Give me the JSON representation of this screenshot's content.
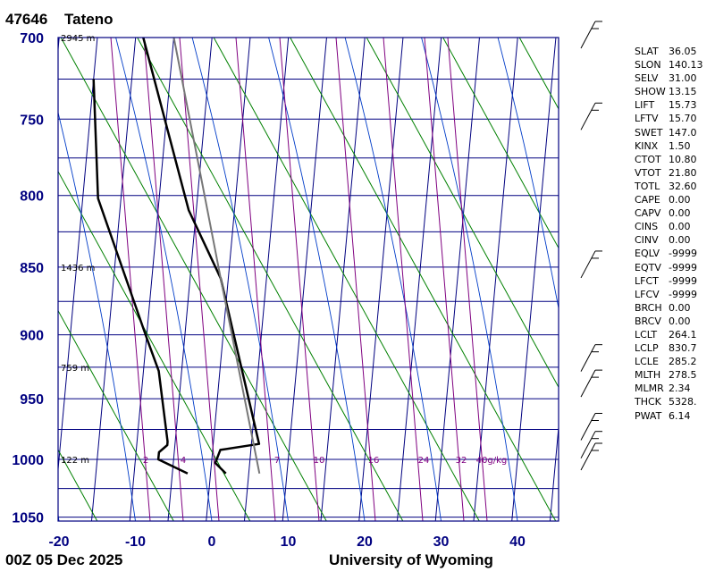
{
  "header": {
    "station_id": "47646",
    "station_name": "Tateno"
  },
  "footer": {
    "datetime": "00Z 05 Dec 2025",
    "source": "University of Wyoming"
  },
  "chart_data": {
    "type": "line",
    "title": "",
    "xlabel": "",
    "ylabel": "",
    "y_scale": "log",
    "x_ticks": [
      -20,
      -10,
      0,
      10,
      20,
      30,
      40
    ],
    "y_ticks": [
      700,
      750,
      800,
      850,
      900,
      950,
      1000,
      1050
    ],
    "xlim": [
      -20,
      45
    ],
    "ylim": [
      1050,
      700
    ],
    "height_labels": [
      {
        "p": 700,
        "label": "2945 m"
      },
      {
        "p": 850,
        "label": "1436 m"
      },
      {
        "p": 925,
        "label": "759 m"
      },
      {
        "p": 1000,
        "label": "122 m"
      }
    ],
    "mixing_ratio_labels": [
      "2",
      "4",
      "7",
      "10",
      "16",
      "24",
      "32",
      "40g/kg"
    ],
    "series": [
      {
        "role": "temperature",
        "color": "#000000",
        "points": [
          [
            2,
            1012
          ],
          [
            0.5,
            1003
          ],
          [
            1,
            992
          ],
          [
            6,
            987
          ],
          [
            -1,
            858
          ],
          [
            -6,
            810
          ],
          [
            -14,
            700
          ]
        ]
      },
      {
        "role": "dewpoint",
        "color": "#000000",
        "points": [
          [
            -3,
            1012
          ],
          [
            -7,
            1000
          ],
          [
            -7,
            994
          ],
          [
            -6,
            988
          ],
          [
            -6,
            985
          ],
          [
            -8,
            928
          ],
          [
            -10,
            902
          ],
          [
            -18,
            802
          ],
          [
            -20,
            725
          ]
        ]
      },
      {
        "role": "parcel",
        "color": "#777777",
        "points": [
          [
            6.4,
            1012
          ],
          [
            -1,
            858
          ],
          [
            -10,
            700
          ]
        ]
      }
    ],
    "wind_barbs_at": [
      700,
      750,
      850,
      920,
      940,
      975,
      990,
      1000
    ]
  },
  "indices": [
    {
      "name": "SLAT",
      "value": "36.05"
    },
    {
      "name": "SLON",
      "value": "140.13"
    },
    {
      "name": "SELV",
      "value": "31.00"
    },
    {
      "name": "SHOW",
      "value": "13.15"
    },
    {
      "name": "LIFT",
      "value": "15.73"
    },
    {
      "name": "LFTV",
      "value": "15.70"
    },
    {
      "name": "SWET",
      "value": "147.0"
    },
    {
      "name": "KINX",
      "value": "1.50"
    },
    {
      "name": "CTOT",
      "value": "10.80"
    },
    {
      "name": "VTOT",
      "value": "21.80"
    },
    {
      "name": "TOTL",
      "value": "32.60"
    },
    {
      "name": "CAPE",
      "value": "0.00"
    },
    {
      "name": "CAPV",
      "value": "0.00"
    },
    {
      "name": "CINS",
      "value": "0.00"
    },
    {
      "name": "CINV",
      "value": "0.00"
    },
    {
      "name": "EQLV",
      "value": "-9999"
    },
    {
      "name": "EQTV",
      "value": "-9999"
    },
    {
      "name": "LFCT",
      "value": "-9999"
    },
    {
      "name": "LFCV",
      "value": "-9999"
    },
    {
      "name": "BRCH",
      "value": "0.00"
    },
    {
      "name": "BRCV",
      "value": "0.00"
    },
    {
      "name": "LCLT",
      "value": "264.1"
    },
    {
      "name": "LCLP",
      "value": "830.7"
    },
    {
      "name": "LCLE",
      "value": "285.2"
    },
    {
      "name": "MLTH",
      "value": "278.5"
    },
    {
      "name": "MLMR",
      "value": "2.34"
    },
    {
      "name": "THCK",
      "value": "5328."
    },
    {
      "name": "PWAT",
      "value": "6.14"
    }
  ],
  "colors": {
    "grid": "#000080",
    "axis_label": "#000080",
    "isotherm": "#000080",
    "dry_adiabat": "#008000",
    "moist_adiabat": "#003cc8",
    "mixing_ratio": "#800080",
    "profile": "#000000",
    "parcel": "#777777"
  }
}
